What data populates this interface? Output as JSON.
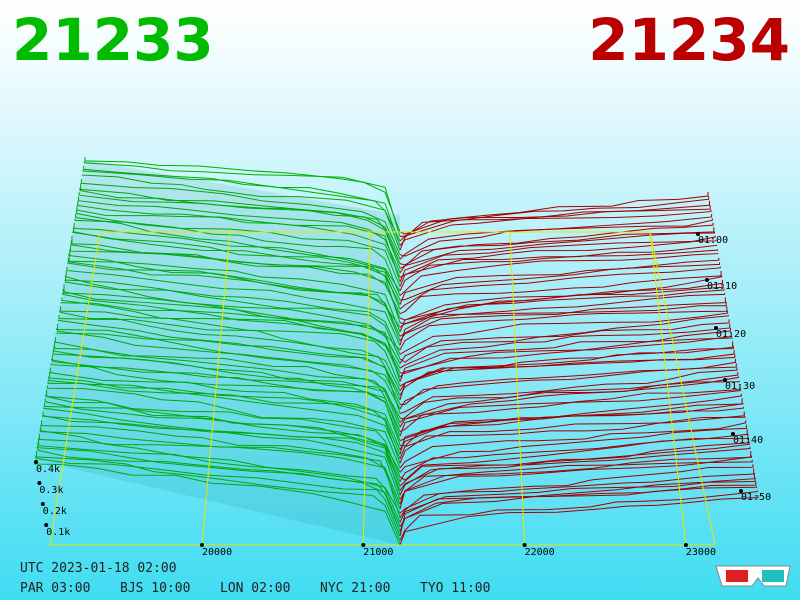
{
  "header": {
    "bid": "21233",
    "ask": "21234"
  },
  "price_axis": {
    "ticks": [
      "20000",
      "21000",
      "22000",
      "23000"
    ]
  },
  "time_axis": {
    "ticks": [
      "01:00",
      "01:10",
      "01:20",
      "01:30",
      "01:40",
      "01:50"
    ]
  },
  "volume_axis": {
    "ticks": [
      "0.4k",
      "0.3k",
      "0.2k",
      "0.1k"
    ]
  },
  "footer": {
    "utc": "UTC 2023-01-18 02:00",
    "zones": [
      "PAR 03:00",
      "BJS 10:00",
      "LON 02:00",
      "NYC 21:00",
      "TYO 11:00"
    ]
  }
}
